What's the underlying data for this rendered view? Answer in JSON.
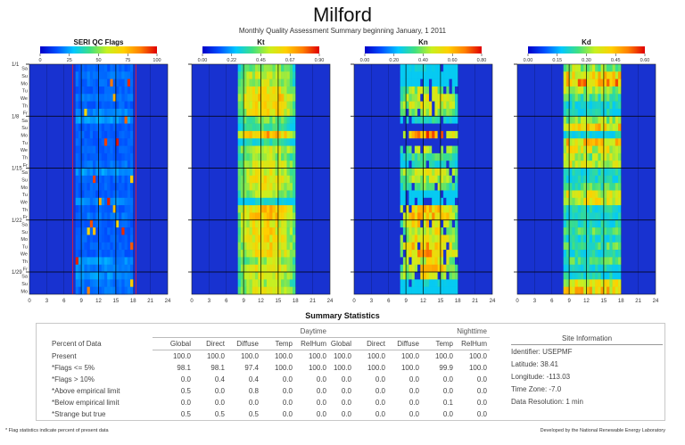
{
  "header": {
    "title": "Milford",
    "subtitle": "Monthly Quality Assessment Summary beginning January, 1 2011"
  },
  "colors": {
    "night_blue": "#1832d0",
    "grid_line": "#000000",
    "flag_limit_line": "#d02040",
    "colormap": [
      "#0000c8",
      "#0050ff",
      "#00c8ff",
      "#40e080",
      "#c8f020",
      "#ffd000",
      "#ff8000",
      "#e00000"
    ]
  },
  "chart_data": [
    {
      "type": "heatmap",
      "title": "SERI QC Flags",
      "colorbar_ticks": [
        "0",
        "25",
        "50",
        "75",
        "100"
      ],
      "range": [
        0,
        100
      ],
      "x_ticks": [
        "0",
        "3",
        "6",
        "9",
        "12",
        "15",
        "18",
        "21",
        "24"
      ],
      "xlim": [
        0,
        24
      ],
      "y_week_labels": [
        "1/1",
        "1/8",
        "1/15",
        "1/22",
        "1/29"
      ],
      "y_day_labels": [
        "Sa",
        "Su",
        "Mo",
        "Tu",
        "We",
        "Th",
        "Fr",
        "Sa",
        "Su",
        "Mo",
        "Tu",
        "We",
        "Th",
        "Fr",
        "Sa",
        "Su",
        "Mo",
        "Tu",
        "We",
        "Th",
        "Fr",
        "Sa",
        "Su",
        "Mo",
        "Tu",
        "We",
        "Th",
        "Fr",
        "Sa",
        "Su",
        "Mo"
      ],
      "daylight_hours": [
        8,
        18
      ],
      "flag_limit_hours": [
        7.5,
        18.5
      ],
      "daily_values": [
        8,
        10,
        9,
        8,
        10,
        8,
        12,
        14,
        8,
        8,
        8,
        8,
        8,
        10,
        14,
        8,
        8,
        8,
        12,
        8,
        10,
        8,
        8,
        8,
        8,
        8,
        14,
        12,
        14,
        10,
        10
      ]
    },
    {
      "type": "heatmap",
      "title": "Kt",
      "colorbar_ticks": [
        "0.00",
        "0.22",
        "0.45",
        "0.67",
        "0.90"
      ],
      "range": [
        0,
        0.9
      ],
      "x_ticks": [
        "0",
        "3",
        "6",
        "9",
        "12",
        "15",
        "18",
        "21",
        "24"
      ],
      "xlim": [
        0,
        24
      ],
      "daylight_hours": [
        8,
        18
      ],
      "daily_values": [
        0.45,
        0.55,
        0.5,
        0.6,
        0.65,
        0.6,
        0.6,
        0.45,
        0.4,
        0.7,
        0.35,
        0.55,
        0.5,
        0.55,
        0.55,
        0.6,
        0.55,
        0.5,
        0.3,
        0.65,
        0.65,
        0.6,
        0.6,
        0.6,
        0.6,
        0.6,
        0.5,
        0.6,
        0.55,
        0.5,
        0.55
      ]
    },
    {
      "type": "heatmap",
      "title": "Kn",
      "colorbar_ticks": [
        "0.00",
        "0.20",
        "0.40",
        "0.60",
        "0.80"
      ],
      "range": [
        0,
        0.8
      ],
      "x_ticks": [
        "0",
        "3",
        "6",
        "9",
        "12",
        "15",
        "18",
        "21",
        "24"
      ],
      "xlim": [
        0,
        24
      ],
      "daylight_hours": [
        8,
        18
      ],
      "daily_values": [
        0.25,
        0.15,
        0.1,
        0.45,
        0.5,
        0.5,
        0.45,
        0.3,
        0,
        0.65,
        0,
        0.45,
        0.35,
        0.3,
        0.5,
        0.45,
        0.4,
        0.15,
        0.05,
        0.6,
        0.6,
        0.55,
        0.5,
        0.55,
        0.6,
        0.6,
        0.5,
        0.55,
        0.5,
        0.25,
        0.15
      ]
    },
    {
      "type": "heatmap",
      "title": "Kd",
      "colorbar_ticks": [
        "0.00",
        "0.15",
        "0.30",
        "0.45",
        "0.60"
      ],
      "range": [
        0,
        0.6
      ],
      "x_ticks": [
        "0",
        "3",
        "6",
        "9",
        "12",
        "15",
        "18",
        "21",
        "24"
      ],
      "xlim": [
        0,
        24
      ],
      "daylight_hours": [
        8,
        18
      ],
      "daily_values": [
        0.3,
        0.4,
        0.45,
        0.3,
        0.25,
        0.2,
        0.2,
        0.3,
        0.4,
        0.2,
        0.4,
        0.35,
        0.3,
        0.35,
        0.2,
        0.2,
        0.25,
        0.35,
        0.35,
        0.2,
        0.2,
        0.2,
        0.25,
        0.2,
        0.25,
        0.2,
        0.25,
        0.2,
        0.2,
        0.35,
        0.4
      ]
    }
  ],
  "summary": {
    "title": "Summary Statistics",
    "daytime_label": "Daytime",
    "nighttime_label": "Nighttime",
    "row_header": "Percent of Data",
    "columns": [
      "Global",
      "Direct",
      "Diffuse",
      "Temp",
      "RelHum"
    ],
    "rows": [
      {
        "label": "Present",
        "day": [
          "100.0",
          "100.0",
          "100.0",
          "100.0",
          "100.0"
        ],
        "night": [
          "100.0",
          "100.0",
          "100.0",
          "100.0",
          "100.0"
        ]
      },
      {
        "label": "*Flags <= 5%",
        "day": [
          "98.1",
          "98.1",
          "97.4",
          "100.0",
          "100.0"
        ],
        "night": [
          "100.0",
          "100.0",
          "100.0",
          "99.9",
          "100.0"
        ]
      },
      {
        "label": "*Flags > 10%",
        "day": [
          "0.0",
          "0.4",
          "0.4",
          "0.0",
          "0.0"
        ],
        "night": [
          "0.0",
          "0.0",
          "0.0",
          "0.0",
          "0.0"
        ]
      },
      {
        "label": "*Above empirical limit",
        "day": [
          "0.5",
          "0.0",
          "0.8",
          "0.0",
          "0.0"
        ],
        "night": [
          "0.0",
          "0.0",
          "0.0",
          "0.0",
          "0.0"
        ]
      },
      {
        "label": "*Below empirical limit",
        "day": [
          "0.0",
          "0.0",
          "0.0",
          "0.0",
          "0.0"
        ],
        "night": [
          "0.0",
          "0.0",
          "0.0",
          "0.1",
          "0.0"
        ]
      },
      {
        "label": "*Strange but true",
        "day": [
          "0.5",
          "0.5",
          "0.5",
          "0.0",
          "0.0"
        ],
        "night": [
          "0.0",
          "0.0",
          "0.0",
          "0.0",
          "0.0"
        ]
      }
    ]
  },
  "site": {
    "title": "Site Information",
    "identifier": "Identifier: USEPMF",
    "latitude": "Latitude: 38.41",
    "longitude": "Longitude: -113.03",
    "timezone": "Time Zone: -7.0",
    "resolution": "Data Resolution: 1 min"
  },
  "footer": {
    "note": "* Flag statistics indicate percent of present data",
    "credit": "Developed by the National Renewable Energy Laboratory"
  }
}
